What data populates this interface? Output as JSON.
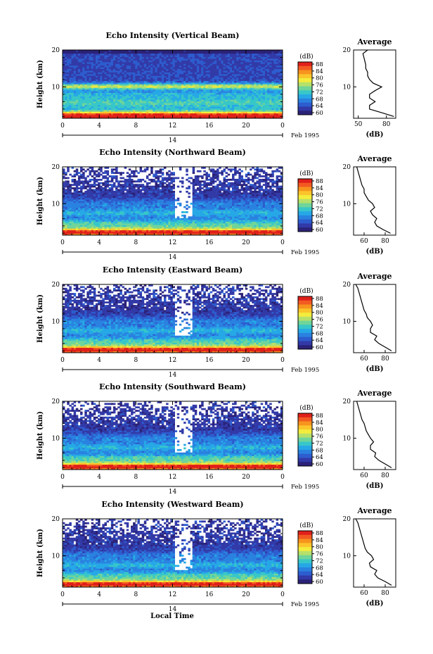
{
  "figure": {
    "xlabel": "Local Time",
    "date_label": "Feb 1995",
    "day_label": "14"
  },
  "colorbar": {
    "unit": "(dB)",
    "ticks": [
      "88",
      "84",
      "80",
      "76",
      "72",
      "68",
      "64",
      "60"
    ],
    "colors": [
      "#e0201a",
      "#f25a22",
      "#f7931e",
      "#fbc42b",
      "#f4ec3c",
      "#b6e06a",
      "#6fd59a",
      "#38c7c8",
      "#26a8e6",
      "#2a82e0",
      "#2d5dcf",
      "#323aa8",
      "#2b2278"
    ]
  },
  "chart_data": [
    {
      "type": "heatmap",
      "title": "Echo Intensity (Vertical Beam)",
      "ylabel": "Height (km)",
      "xlabel": "",
      "x_ticks": [
        "0",
        "4",
        "8",
        "12",
        "16",
        "20",
        "0"
      ],
      "y_ticks": [
        "20",
        "10"
      ],
      "xlim": [
        0,
        24
      ],
      "ylim": [
        1.5,
        20
      ],
      "value_range_db": [
        60,
        88
      ],
      "features": [
        {
          "height_km": 10.2,
          "note": "strong echo layer"
        },
        {
          "height_km": 2,
          "note": "strongest near ground"
        }
      ],
      "profile": {
        "title": "Average",
        "xlabel": "(dB)",
        "x_ticks": [
          "50",
          "80"
        ],
        "y_ticks": [
          "20",
          "10"
        ],
        "xlim": [
          45,
          90
        ],
        "height_km": [
          2,
          3,
          4,
          5,
          6,
          7,
          8,
          9,
          10,
          11,
          12,
          13,
          14,
          15,
          16,
          17,
          18,
          19,
          20
        ],
        "mean_db": [
          88,
          75,
          62,
          62,
          68,
          62,
          62,
          68,
          75,
          66,
          62,
          60,
          60,
          58,
          58,
          57,
          56,
          55,
          60
        ]
      }
    },
    {
      "type": "heatmap",
      "title": "Echo Intensity (Northward Beam)",
      "ylabel": "Height (km)",
      "xlabel": "",
      "x_ticks": [
        "0",
        "4",
        "8",
        "12",
        "16",
        "20",
        "0"
      ],
      "y_ticks": [
        "20",
        "10"
      ],
      "xlim": [
        0,
        24
      ],
      "ylim": [
        1.5,
        20
      ],
      "value_range_db": [
        60,
        88
      ],
      "profile": {
        "title": "Average",
        "xlabel": "(dB)",
        "x_ticks": [
          "60",
          "80"
        ],
        "y_ticks": [
          "20",
          "10"
        ],
        "xlim": [
          50,
          90
        ],
        "height_km": [
          2,
          3,
          4,
          5,
          6,
          7,
          8,
          9,
          10,
          11,
          12,
          13,
          14,
          15,
          16,
          17,
          18,
          19,
          20
        ],
        "mean_db": [
          85,
          78,
          72,
          70,
          72,
          68,
          66,
          70,
          68,
          64,
          62,
          60,
          60,
          58,
          57,
          56,
          55,
          54,
          53
        ]
      }
    },
    {
      "type": "heatmap",
      "title": "Echo Intensity (Eastward Beam)",
      "ylabel": "Height (km)",
      "xlabel": "",
      "x_ticks": [
        "0",
        "4",
        "8",
        "12",
        "16",
        "20",
        "0"
      ],
      "y_ticks": [
        "20",
        "10"
      ],
      "xlim": [
        0,
        24
      ],
      "ylim": [
        1.5,
        20
      ],
      "value_range_db": [
        60,
        88
      ],
      "profile": {
        "title": "Average",
        "xlabel": "(dB)",
        "x_ticks": [
          "60",
          "80"
        ],
        "y_ticks": [
          "20",
          "10"
        ],
        "xlim": [
          50,
          90
        ],
        "height_km": [
          2,
          3,
          4,
          5,
          6,
          7,
          8,
          9,
          10,
          11,
          12,
          13,
          14,
          15,
          16,
          17,
          18,
          19,
          20
        ],
        "mean_db": [
          86,
          80,
          74,
          70,
          72,
          66,
          66,
          68,
          66,
          63,
          62,
          60,
          59,
          58,
          57,
          56,
          55,
          54,
          52
        ]
      }
    },
    {
      "type": "heatmap",
      "title": "Echo Intensity (Southward Beam)",
      "ylabel": "Height (km)",
      "xlabel": "",
      "x_ticks": [
        "0",
        "4",
        "8",
        "12",
        "16",
        "20",
        "0"
      ],
      "y_ticks": [
        "20",
        "10"
      ],
      "xlim": [
        0,
        24
      ],
      "ylim": [
        1.5,
        20
      ],
      "value_range_db": [
        60,
        88
      ],
      "profile": {
        "title": "Average",
        "xlabel": "(dB)",
        "x_ticks": [
          "60",
          "80"
        ],
        "y_ticks": [
          "20",
          "10"
        ],
        "xlim": [
          50,
          90
        ],
        "height_km": [
          2,
          3,
          4,
          5,
          6,
          7,
          8,
          9,
          10,
          11,
          12,
          13,
          14,
          15,
          16,
          17,
          18,
          19,
          20
        ],
        "mean_db": [
          86,
          80,
          74,
          70,
          71,
          66,
          66,
          69,
          66,
          64,
          62,
          61,
          60,
          58,
          57,
          56,
          55,
          54,
          53
        ]
      }
    },
    {
      "type": "heatmap",
      "title": "Echo Intensity (Westward Beam)",
      "ylabel": "Height (km)",
      "xlabel": "Local Time",
      "x_ticks": [
        "0",
        "4",
        "8",
        "12",
        "16",
        "20",
        "0"
      ],
      "y_ticks": [
        "20",
        "10"
      ],
      "xlim": [
        0,
        24
      ],
      "ylim": [
        1.5,
        20
      ],
      "value_range_db": [
        60,
        88
      ],
      "profile": {
        "title": "Average",
        "xlabel": "(dB)",
        "x_ticks": [
          "60",
          "80"
        ],
        "y_ticks": [
          "20",
          "10"
        ],
        "xlim": [
          50,
          90
        ],
        "height_km": [
          2,
          3,
          4,
          5,
          6,
          7,
          8,
          9,
          10,
          11,
          12,
          13,
          14,
          15,
          16,
          17,
          18,
          19,
          20
        ],
        "mean_db": [
          86,
          80,
          73,
          70,
          72,
          66,
          65,
          69,
          67,
          63,
          61,
          60,
          59,
          58,
          57,
          56,
          55,
          54,
          52
        ]
      }
    }
  ]
}
